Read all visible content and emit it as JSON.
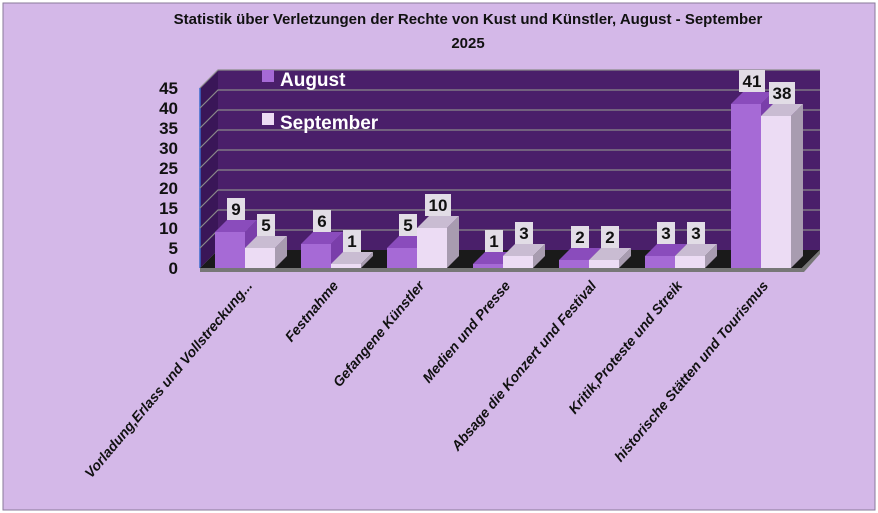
{
  "chart_data": {
    "type": "bar",
    "title_line1": "Statistik über Verletzungen der Rechte von Kust und Künstler, August - September",
    "title_line2": "2025",
    "categories": [
      "Vorladung,Erlass und  Vollstreckung...",
      "Festnahme",
      "Gefangene Künstler",
      "Medien und Presse",
      "Absage die Konzert und Festival",
      "Kritik,Proteste und  Streik",
      "historische Stätten und Tourismus"
    ],
    "series": [
      {
        "name": "August",
        "values": [
          9,
          6,
          5,
          1,
          2,
          3,
          41
        ],
        "color": "#a66ad6"
      },
      {
        "name": "September",
        "values": [
          5,
          1,
          10,
          3,
          2,
          3,
          38
        ],
        "color": "#ecdcf4"
      }
    ],
    "yticks": [
      0,
      5,
      10,
      15,
      20,
      25,
      30,
      35,
      40,
      45
    ],
    "ylim": [
      0,
      45
    ],
    "grid": true,
    "legend": "top-left inside plot",
    "colors": {
      "background": "#d4b8e8",
      "wall": "#4a1f6a",
      "floor": "#1a1a1a"
    }
  }
}
